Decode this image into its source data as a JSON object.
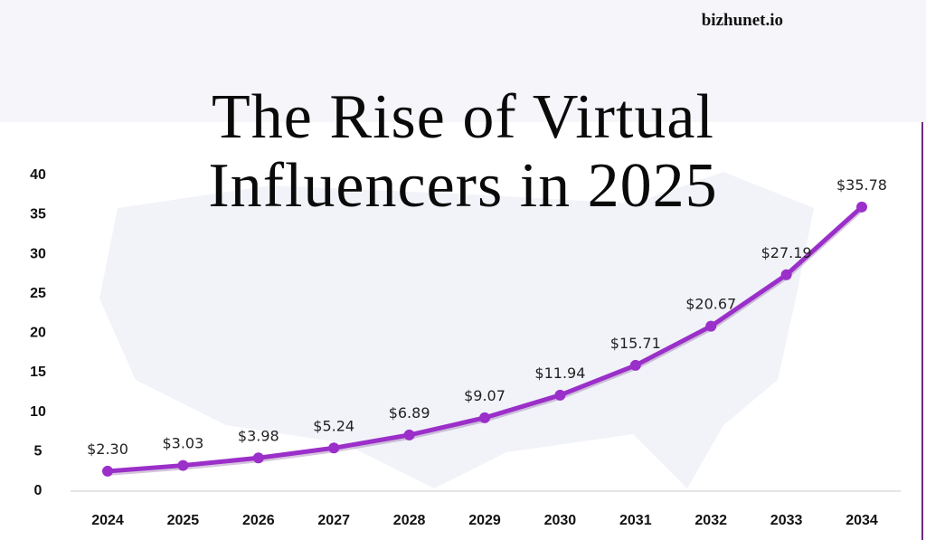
{
  "brand": "bizhunet.io",
  "title_line1": "The Rise of Virtual",
  "title_line2": "Influencers in 2025",
  "chart_data": {
    "type": "line",
    "title": "The Rise of Virtual Influencers in 2025",
    "xlabel": "",
    "ylabel": "",
    "categories": [
      "2024",
      "2025",
      "2026",
      "2027",
      "2028",
      "2029",
      "2030",
      "2031",
      "2032",
      "2033",
      "2034"
    ],
    "values": [
      2.3,
      3.03,
      3.98,
      5.24,
      6.89,
      9.07,
      11.94,
      15.71,
      20.67,
      27.19,
      35.78
    ],
    "data_labels": [
      "$2.30",
      "$3.03",
      "$3.98",
      "$5.24",
      "$6.89",
      "$9.07",
      "$11.94",
      "$15.71",
      "$20.67",
      "$27.19",
      "$35.78"
    ],
    "yticks": [
      0,
      5,
      10,
      15,
      20,
      25,
      30,
      35,
      40
    ],
    "ylim": [
      0,
      40
    ],
    "grid": false,
    "color": "#9b2fc9"
  }
}
